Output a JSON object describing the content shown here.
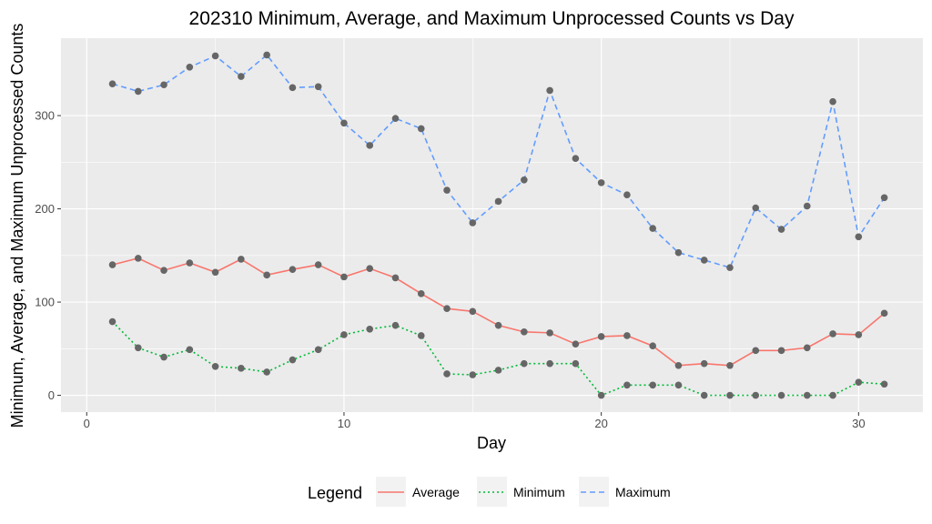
{
  "chart_data": {
    "type": "line",
    "title": "202310 Minimum, Average, and Maximum Unprocessed Counts vs Day",
    "xlabel": "Day",
    "ylabel": "Minimum, Average, and Maximum Unprocessed Counts",
    "xlim": [
      -1,
      32.5
    ],
    "ylim": [
      -18,
      383
    ],
    "xticks": [
      0,
      10,
      20,
      30
    ],
    "yticks": [
      0,
      100,
      200,
      300
    ],
    "grid": true,
    "point_color": "#666666",
    "legend": {
      "title": "Legend",
      "position": "bottom"
    },
    "x": [
      1,
      2,
      3,
      4,
      5,
      6,
      7,
      8,
      9,
      10,
      11,
      12,
      13,
      14,
      15,
      16,
      17,
      18,
      19,
      20,
      21,
      22,
      23,
      24,
      25,
      26,
      27,
      28,
      29,
      30,
      31
    ],
    "series": [
      {
        "name": "Average",
        "color": "#F8766D",
        "dash": "solid",
        "values": [
          140,
          147,
          134,
          142,
          132,
          146,
          129,
          135,
          140,
          127,
          136,
          126,
          109,
          93,
          90,
          75,
          68,
          67,
          55,
          63,
          64,
          53,
          32,
          34,
          32,
          48,
          48,
          51,
          66,
          65,
          88
        ]
      },
      {
        "name": "Minimum",
        "color": "#00BA38",
        "dash": "dotted",
        "values": [
          79,
          51,
          41,
          49,
          31,
          29,
          25,
          38,
          49,
          65,
          71,
          75,
          64,
          23,
          22,
          27,
          34,
          34,
          34,
          0,
          11,
          11,
          11,
          0,
          0,
          0,
          0,
          0,
          0,
          14,
          12
        ]
      },
      {
        "name": "Maximum",
        "color": "#619CFF",
        "dash": "dashed",
        "values": [
          334,
          326,
          333,
          352,
          364,
          342,
          365,
          330,
          331,
          292,
          268,
          297,
          286,
          220,
          185,
          208,
          231,
          327,
          254,
          228,
          215,
          179,
          153,
          145,
          137,
          201,
          178,
          203,
          315,
          170,
          212
        ]
      }
    ]
  }
}
